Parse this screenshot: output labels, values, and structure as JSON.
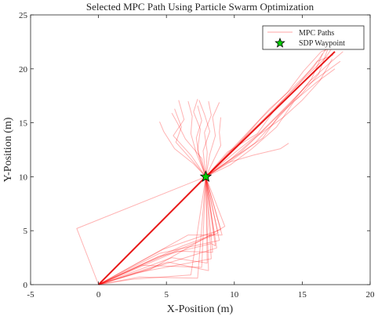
{
  "chart_data": {
    "type": "line",
    "title": "Selected MPC Path Using Particle Swarm Optimization",
    "xlabel": "X-Position (m)",
    "ylabel": "Y-Position (m)",
    "xlim": [
      -5,
      20
    ],
    "ylim": [
      0,
      25
    ],
    "xticks": [
      -5,
      0,
      5,
      10,
      15,
      20
    ],
    "yticks": [
      0,
      5,
      10,
      15,
      20,
      25
    ],
    "grid": false,
    "legend_position": "top-right",
    "legend": [
      {
        "label": "MPC Paths",
        "marker": "line"
      },
      {
        "label": "SDP Waypoint",
        "marker": "star"
      }
    ],
    "colors": {
      "mpc_path": "#ff0000",
      "selected_path": "#e60000",
      "waypoint_fill": "#00d000",
      "axis": "#262626"
    },
    "selected_path": [
      [
        0,
        0
      ],
      [
        7.9,
        10
      ],
      [
        17.4,
        21.6
      ]
    ],
    "waypoint": [
      7.9,
      10
    ],
    "mpc_paths_lower": [
      [
        [
          0,
          0
        ],
        [
          4.4,
          2.6
        ],
        [
          8.3,
          3.8
        ],
        [
          8.6,
          3.6
        ],
        [
          7.9,
          10
        ]
      ],
      [
        [
          0,
          0
        ],
        [
          3.5,
          2.0
        ],
        [
          8.5,
          4.6
        ],
        [
          7.9,
          10
        ]
      ],
      [
        [
          0,
          0
        ],
        [
          2.8,
          1.1
        ],
        [
          8.3,
          2.4
        ],
        [
          7.9,
          10
        ]
      ],
      [
        [
          0,
          0
        ],
        [
          5.1,
          2.1
        ],
        [
          8.1,
          1.3
        ],
        [
          7.9,
          10
        ]
      ],
      [
        [
          0,
          0
        ],
        [
          4.1,
          1.6
        ],
        [
          8.7,
          3.4
        ],
        [
          7.9,
          10
        ]
      ],
      [
        [
          0,
          0
        ],
        [
          6.2,
          3.6
        ],
        [
          8.8,
          4.8
        ],
        [
          7.9,
          10
        ]
      ],
      [
        [
          0,
          0
        ],
        [
          6.6,
          4.6
        ],
        [
          9.1,
          4.6
        ],
        [
          7.9,
          10
        ]
      ],
      [
        [
          0,
          0
        ],
        [
          3.0,
          0.7
        ],
        [
          7.3,
          0.6
        ],
        [
          7.9,
          10
        ]
      ],
      [
        [
          0,
          0
        ],
        [
          4.5,
          2.9
        ],
        [
          8.9,
          4.1
        ],
        [
          7.9,
          10
        ]
      ],
      [
        [
          0,
          0
        ],
        [
          5.4,
          2.5
        ],
        [
          8.0,
          2.0
        ],
        [
          7.9,
          10
        ]
      ],
      [
        [
          0,
          0
        ],
        [
          2.5,
          0.5
        ],
        [
          6.8,
          0.9
        ],
        [
          7.9,
          10
        ]
      ],
      [
        [
          0,
          0
        ],
        [
          3.8,
          1.4
        ],
        [
          9.3,
          5.4
        ],
        [
          7.9,
          10
        ]
      ],
      [
        [
          0,
          0
        ],
        [
          5.8,
          3.1
        ],
        [
          8.4,
          3.0
        ],
        [
          7.9,
          10
        ]
      ],
      [
        [
          0,
          0
        ],
        [
          4.8,
          3.3
        ],
        [
          9.0,
          5.1
        ],
        [
          7.9,
          10
        ]
      ],
      [
        [
          0,
          0
        ],
        [
          3.2,
          1.8
        ],
        [
          7.6,
          1.6
        ],
        [
          7.9,
          10
        ]
      ],
      [
        [
          0,
          0
        ],
        [
          -1.6,
          5.2
        ],
        [
          7.9,
          10
        ]
      ]
    ],
    "mpc_paths_upper": [
      [
        [
          7.9,
          10
        ],
        [
          6.8,
          12.0
        ],
        [
          5.5,
          13.8
        ],
        [
          6.3,
          15.3
        ],
        [
          5.9,
          17.1
        ]
      ],
      [
        [
          7.9,
          10
        ],
        [
          7.2,
          12.2
        ],
        [
          6.8,
          14.0
        ],
        [
          6.9,
          15.6
        ],
        [
          6.6,
          17.0
        ]
      ],
      [
        [
          7.9,
          10
        ],
        [
          7.7,
          12.4
        ],
        [
          8.2,
          14.2
        ],
        [
          7.8,
          15.8
        ],
        [
          7.4,
          17.1
        ]
      ],
      [
        [
          7.9,
          10
        ],
        [
          8.2,
          12.1
        ],
        [
          8.6,
          13.8
        ],
        [
          8.4,
          15.5
        ],
        [
          8.9,
          16.9
        ]
      ],
      [
        [
          7.9,
          10
        ],
        [
          8.5,
          11.6
        ],
        [
          9.0,
          12.9
        ],
        [
          8.9,
          14.1
        ],
        [
          9.0,
          15.5
        ]
      ],
      [
        [
          7.9,
          10
        ],
        [
          7.0,
          11.2
        ],
        [
          5.6,
          12.6
        ],
        [
          4.8,
          14.2
        ],
        [
          4.5,
          15.1
        ]
      ],
      [
        [
          7.9,
          10
        ],
        [
          6.9,
          11.5
        ],
        [
          5.7,
          13.2
        ],
        [
          6.1,
          14.6
        ],
        [
          5.6,
          16.3
        ]
      ],
      [
        [
          7.9,
          10
        ],
        [
          7.4,
          11.9
        ],
        [
          7.2,
          13.6
        ],
        [
          7.6,
          15.2
        ],
        [
          7.3,
          16.6
        ]
      ],
      [
        [
          7.9,
          10
        ],
        [
          8.0,
          12.3
        ],
        [
          7.8,
          14.1
        ],
        [
          8.3,
          15.7
        ],
        [
          8.1,
          17.0
        ]
      ],
      [
        [
          7.9,
          10
        ],
        [
          7.3,
          12.5
        ],
        [
          7.5,
          14.4
        ],
        [
          7.0,
          16.0
        ],
        [
          7.3,
          17.2
        ]
      ],
      [
        [
          7.9,
          10
        ],
        [
          7.6,
          11.7
        ],
        [
          6.4,
          13.5
        ],
        [
          5.8,
          15.0
        ],
        [
          5.4,
          15.9
        ]
      ],
      [
        [
          7.9,
          10
        ],
        [
          9.5,
          11.3
        ],
        [
          11.4,
          12.0
        ],
        [
          13.4,
          12.6
        ],
        [
          14.0,
          13.1
        ]
      ],
      [
        [
          7.9,
          10
        ],
        [
          9.8,
          11.7
        ],
        [
          11.6,
          13.7
        ],
        [
          13.6,
          15.5
        ],
        [
          15.0,
          17.1
        ],
        [
          16.3,
          18.9
        ],
        [
          17.2,
          20.9
        ]
      ],
      [
        [
          7.9,
          10
        ],
        [
          10.1,
          12.3
        ],
        [
          12.0,
          14.2
        ],
        [
          13.5,
          16.1
        ],
        [
          15.3,
          18.4
        ],
        [
          16.6,
          19.6
        ],
        [
          17.8,
          20.7
        ]
      ],
      [
        [
          7.9,
          10
        ],
        [
          9.6,
          11.3
        ],
        [
          11.5,
          13.1
        ],
        [
          12.9,
          15.0
        ],
        [
          14.6,
          17.4
        ],
        [
          15.7,
          19.1
        ],
        [
          16.5,
          21.4
        ]
      ],
      [
        [
          7.9,
          10
        ],
        [
          10.0,
          11.8
        ],
        [
          12.1,
          13.6
        ],
        [
          13.3,
          15.7
        ],
        [
          14.9,
          17.6
        ],
        [
          16.2,
          19.5
        ],
        [
          16.9,
          21.9
        ]
      ],
      [
        [
          7.9,
          10
        ],
        [
          9.4,
          12.0
        ],
        [
          11.2,
          14.4
        ],
        [
          12.6,
          16.3
        ],
        [
          14.1,
          18.0
        ],
        [
          15.8,
          20.1
        ],
        [
          17.0,
          22.3
        ]
      ],
      [
        [
          7.9,
          10
        ],
        [
          10.4,
          12.2
        ],
        [
          12.3,
          14.5
        ],
        [
          14.2,
          16.9
        ],
        [
          15.6,
          18.9
        ],
        [
          16.9,
          20.4
        ],
        [
          18.0,
          21.6
        ]
      ],
      [
        [
          7.9,
          10
        ],
        [
          9.9,
          12.6
        ],
        [
          11.8,
          14.9
        ],
        [
          13.8,
          17.4
        ],
        [
          15.3,
          19.3
        ],
        [
          16.7,
          21.0
        ],
        [
          17.6,
          22.7
        ]
      ],
      [
        [
          7.9,
          10
        ],
        [
          9.7,
          11.1
        ],
        [
          11.3,
          12.6
        ],
        [
          13.1,
          14.6
        ],
        [
          14.4,
          17.0
        ],
        [
          16.0,
          18.7
        ],
        [
          17.4,
          20.0
        ]
      ],
      [
        [
          7.9,
          10
        ],
        [
          10.2,
          12.9
        ],
        [
          11.9,
          15.3
        ],
        [
          13.9,
          17.8
        ],
        [
          15.1,
          19.8
        ],
        [
          16.4,
          21.6
        ],
        [
          17.5,
          22.1
        ]
      ],
      [
        [
          7.9,
          10
        ],
        [
          9.5,
          12.3
        ],
        [
          11.7,
          14.0
        ],
        [
          13.2,
          16.6
        ],
        [
          14.8,
          18.7
        ],
        [
          16.1,
          20.7
        ],
        [
          17.3,
          21.3
        ]
      ]
    ]
  }
}
